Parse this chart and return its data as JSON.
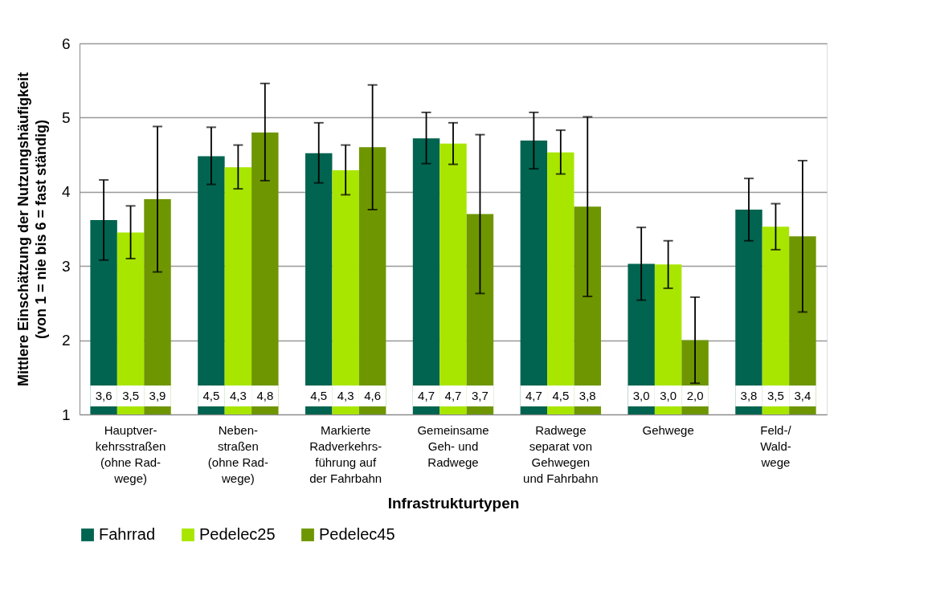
{
  "chart_data": {
    "type": "bar",
    "xlabel": "Infrastrukturtypen",
    "ylabel": "Mittlere Einschätzung der Nutzungshäufigkeit\n(von 1 = nie bis 6 = fast ständig)",
    "categories": [
      "Hauptver-\nkehrsstraßen\n(ohne Rad-\nwege)",
      "Neben-\nstraßen\n(ohne Rad-\nwege)",
      "Markierte\nRadverkehrs-\nführung auf\nder Fahrbahn",
      "Gemeinsame\nGeh- und\nRadwege",
      "Radwege\nseparat von\nGehwegen\nund Fahrbahn",
      "Gehwege",
      "Feld-/\nWald-\nwege"
    ],
    "series": [
      {
        "name": "Fahrrad",
        "color": "#006450",
        "values": [
          3.62,
          4.48,
          4.52,
          4.72,
          4.69,
          3.03,
          3.76
        ],
        "errors": [
          [
            3.08,
            4.16
          ],
          [
            4.1,
            4.87
          ],
          [
            4.12,
            4.93
          ],
          [
            4.38,
            5.07
          ],
          [
            4.31,
            5.07
          ],
          [
            2.54,
            3.52
          ],
          [
            3.34,
            4.18
          ]
        ],
        "value_labels": [
          "3,6",
          "4,5",
          "4,5",
          "4,7",
          "4,7",
          "3,0",
          "3,8"
        ]
      },
      {
        "name": "Pedelec25",
        "color": "#a8e600",
        "values": [
          3.45,
          4.33,
          4.29,
          4.65,
          4.53,
          3.02,
          3.53
        ],
        "errors": [
          [
            3.1,
            3.81
          ],
          [
            4.04,
            4.63
          ],
          [
            3.96,
            4.63
          ],
          [
            4.37,
            4.93
          ],
          [
            4.24,
            4.83
          ],
          [
            2.7,
            3.34
          ],
          [
            3.22,
            3.84
          ]
        ],
        "value_labels": [
          "3,5",
          "4,3",
          "4,3",
          "4,7",
          "4,5",
          "3,0",
          "3,5"
        ]
      },
      {
        "name": "Pedelec45",
        "color": "#6e9600",
        "values": [
          3.9,
          4.8,
          4.6,
          3.7,
          3.8,
          2.0,
          3.4
        ],
        "errors": [
          [
            2.92,
            4.88
          ],
          [
            4.15,
            5.46
          ],
          [
            3.76,
            5.44
          ],
          [
            2.63,
            4.77
          ],
          [
            2.59,
            5.01
          ],
          [
            1.42,
            2.58
          ],
          [
            2.38,
            4.42
          ]
        ],
        "value_labels": [
          "3,9",
          "4,8",
          "4,6",
          "3,7",
          "3,8",
          "2,0",
          "3,4"
        ]
      }
    ],
    "ylim": [
      1,
      6
    ],
    "yticks": [
      1,
      2,
      3,
      4,
      5,
      6
    ],
    "grid": "y",
    "legend": "bottom"
  }
}
